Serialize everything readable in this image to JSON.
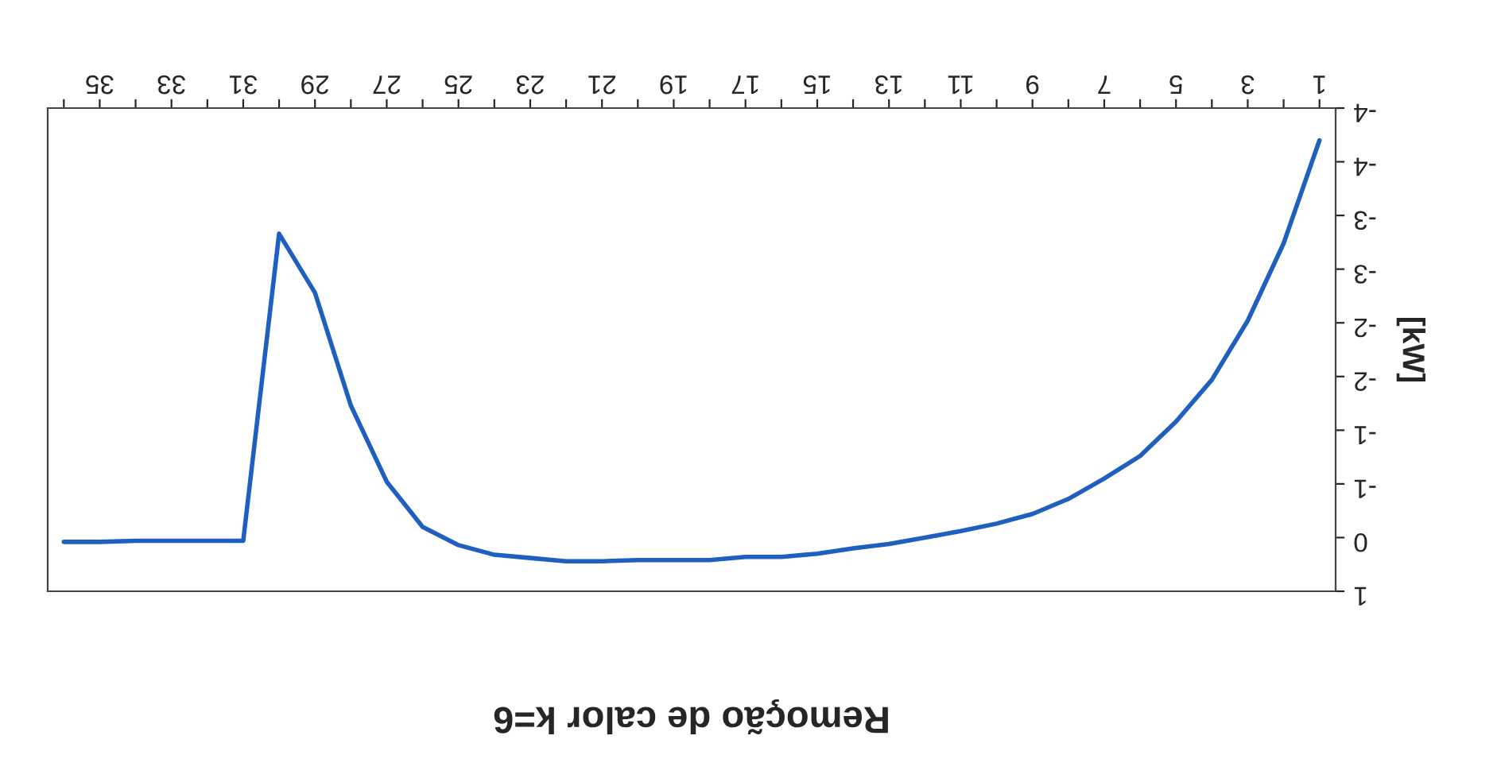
{
  "chart_data": {
    "type": "line",
    "title": "Remoção de calor k=6",
    "ylabel": "[kW]",
    "categories": [
      null,
      "35",
      null,
      "33",
      null,
      "31",
      null,
      "29",
      null,
      "27",
      null,
      "25",
      null,
      "23",
      null,
      "21",
      null,
      "19",
      null,
      "17",
      null,
      "15",
      null,
      "13",
      null,
      "11",
      null,
      "9",
      null,
      "7",
      null,
      "5",
      null,
      "3",
      null,
      "1"
    ],
    "series": [
      {
        "color": "#1f5fbf",
        "values": [
          0.04,
          0.04,
          0.03,
          0.03,
          0.03,
          0.03,
          -2.83,
          -2.28,
          -1.23,
          -0.52,
          -0.1,
          0.07,
          0.16,
          0.19,
          0.22,
          0.22,
          0.21,
          0.21,
          0.21,
          0.18,
          0.18,
          0.15,
          0.1,
          0.06,
          0.0,
          -0.06,
          -0.13,
          -0.22,
          -0.36,
          -0.55,
          -0.76,
          -1.08,
          -1.47,
          -2.02,
          -2.74,
          -3.7
        ]
      }
    ],
    "ylim": [
      0.5,
      -4
    ],
    "yticks": [
      {
        "value": 0.5,
        "label": "1"
      },
      0,
      {
        "value": -0.5,
        "label": "-1"
      },
      -1,
      {
        "value": -1.5,
        "label": "-2"
      },
      -2,
      {
        "value": -2.5,
        "label": "-3"
      },
      -3,
      {
        "value": -3.5,
        "label": "-4"
      },
      -4
    ],
    "grid": false,
    "legend": false,
    "marker": "none",
    "line_style": "solid"
  }
}
